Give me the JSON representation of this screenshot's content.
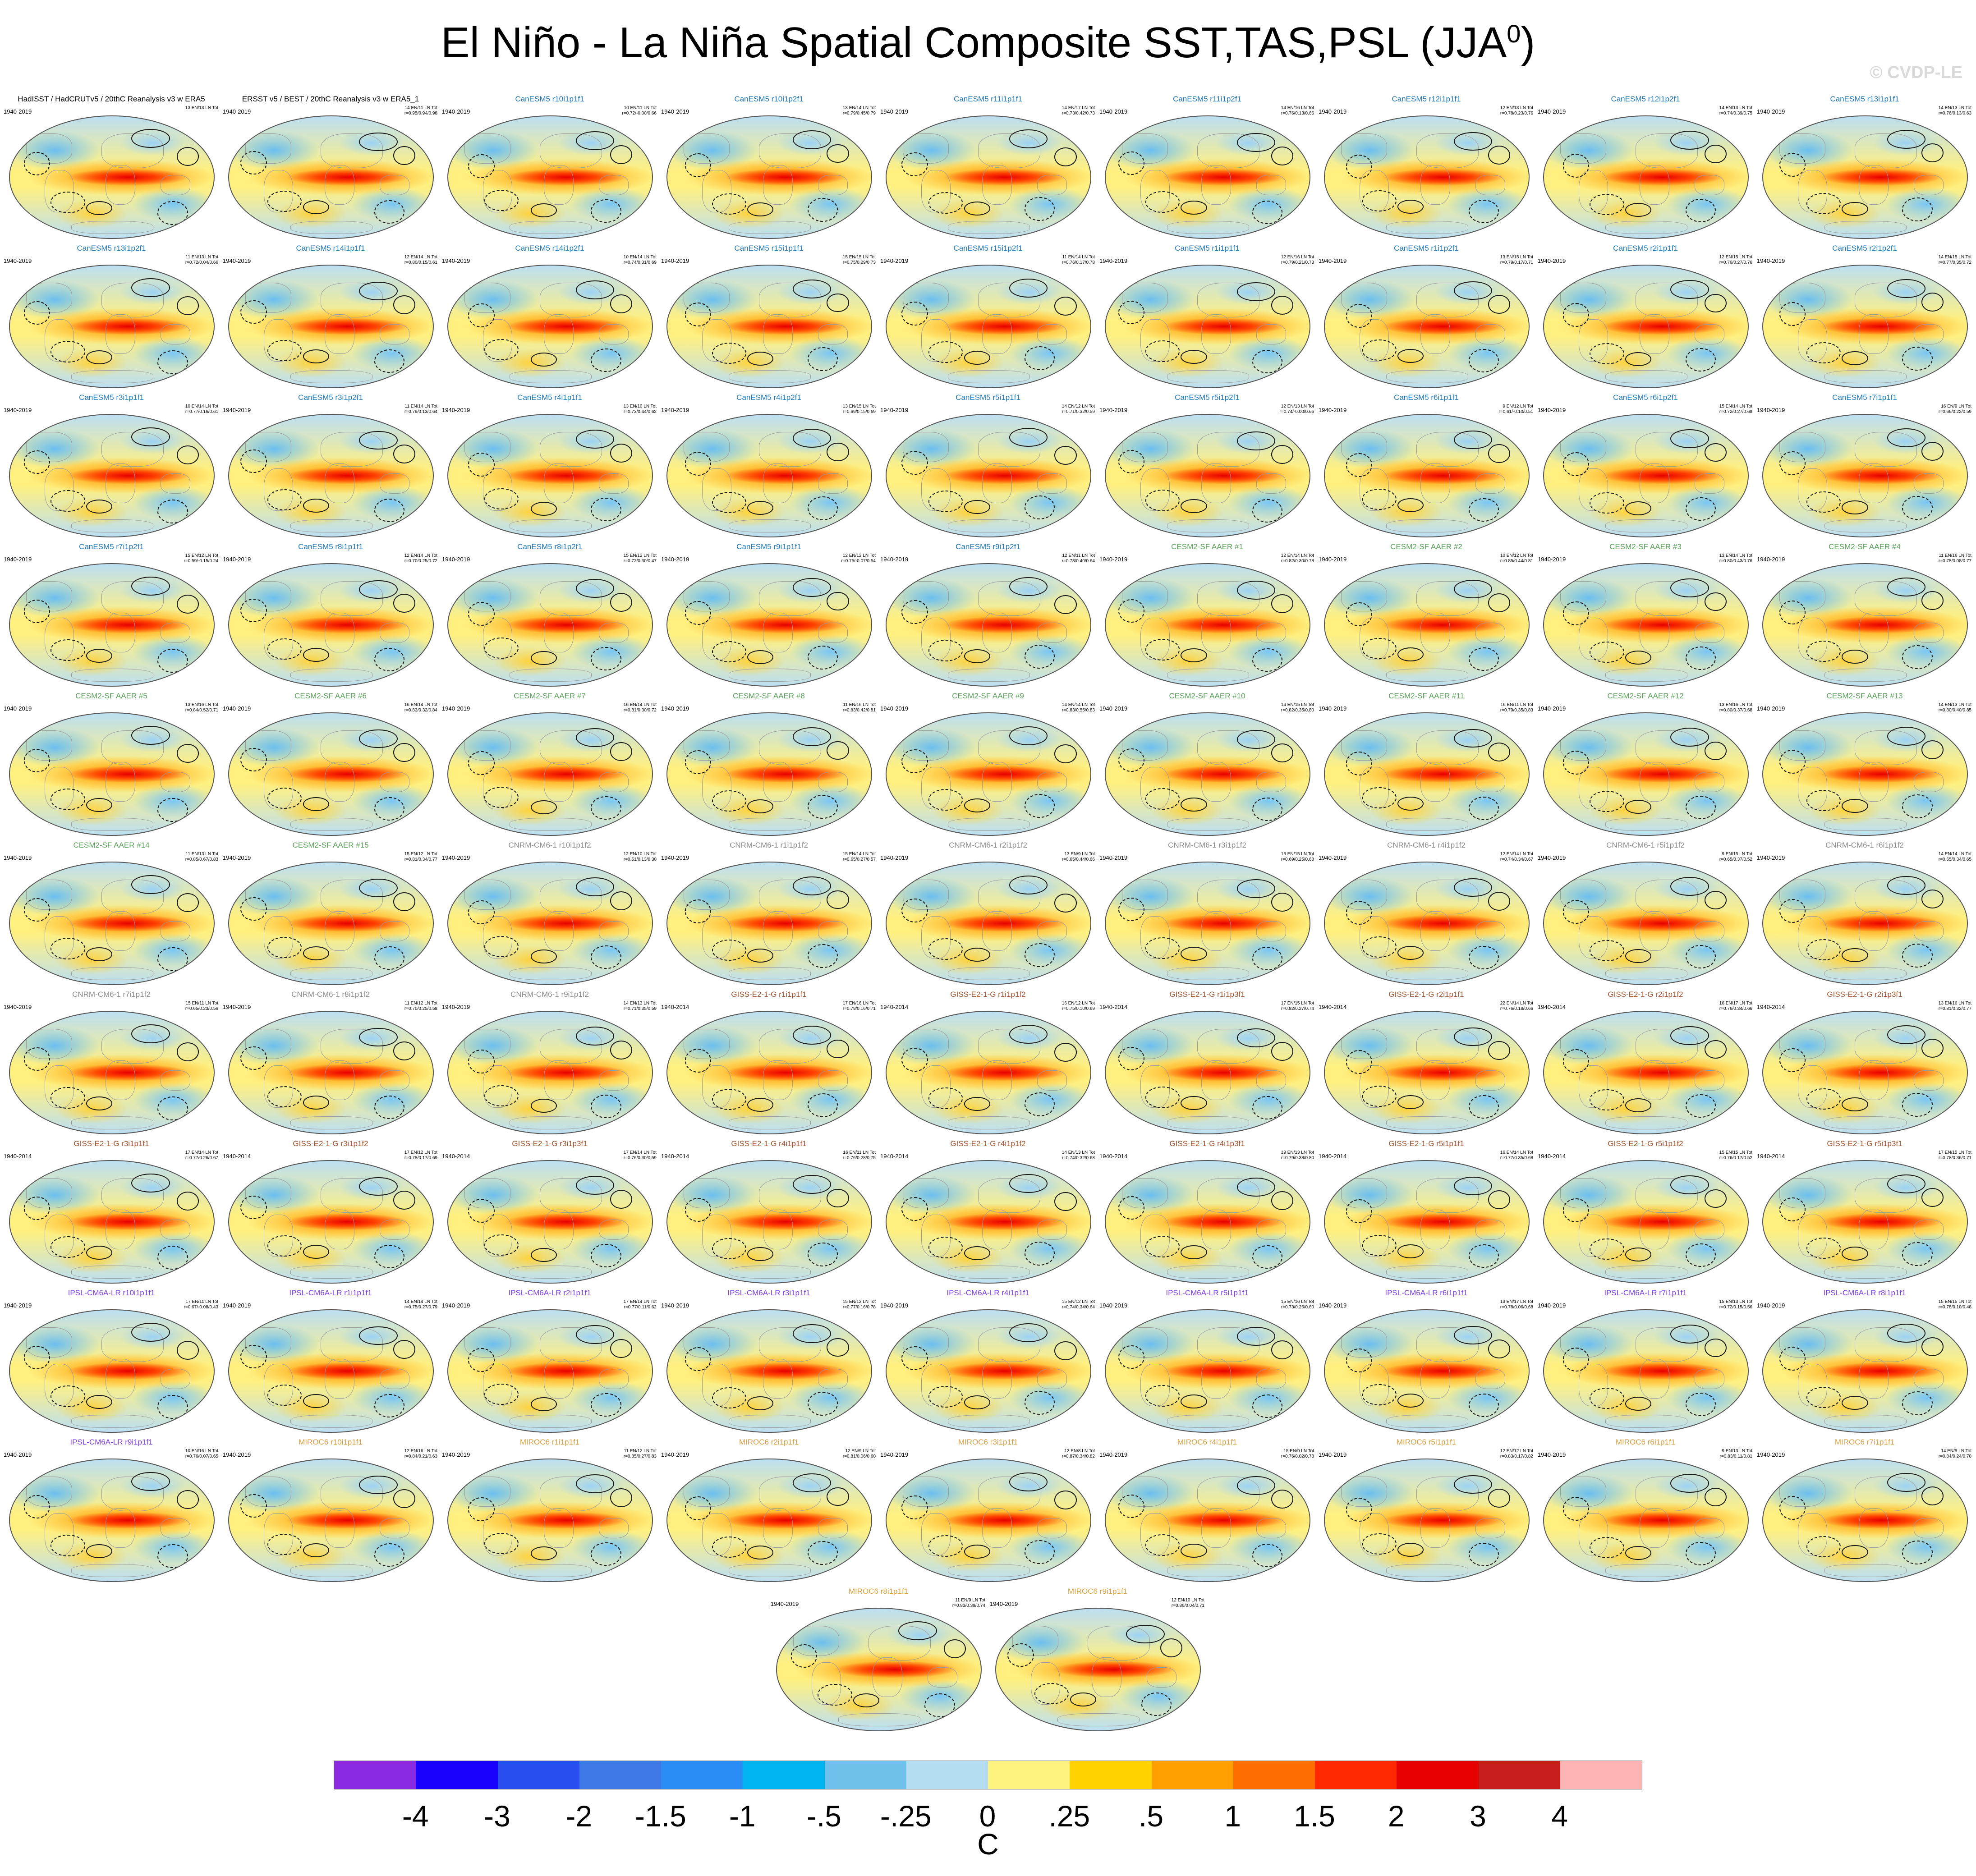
{
  "title": "El Niño - La Niña Spatial Composite SST,TAS,PSL (JJA",
  "title_superscript": "0",
  "title_suffix": ")",
  "watermark": "© CVDP-LE",
  "colorbar": {
    "colors": [
      "#8a2be2",
      "#1a00ff",
      "#2a4df0",
      "#3d78e6",
      "#2a8cf5",
      "#00b4f0",
      "#6fc1ec",
      "#b4dcf1",
      "#fff380",
      "#ffd200",
      "#ffa000",
      "#ff6e00",
      "#ff2800",
      "#e60000",
      "#c81e1e",
      "#ffb4b4"
    ],
    "labels": [
      "-4",
      "-3",
      "-2",
      "-1.5",
      "-1",
      "-.5",
      "-.25",
      "0",
      ".25",
      ".5",
      "1",
      "1.5",
      "2",
      "3",
      "4"
    ],
    "units": "C"
  },
  "model_colors": {
    "obs": "#000000",
    "CanESM5": "#1f77b4",
    "CESM2-SF AAER": "#5aa05a",
    "CNRM-CM6-1": "#8c8c8c",
    "GISS-E2-1-G": "#a0522d",
    "IPSL-CM6A-LR": "#7b3fe4",
    "MIROC6": "#d9a040"
  },
  "panels": [
    {
      "title": "HadISST / HadCRUTv5 / 20thC Reanalysis v3 w ERA5",
      "model": "obs",
      "years": "1940-2019",
      "stats": "13 EN/13 LN Tot"
    },
    {
      "title": "ERSST v5 / BEST / 20thC Reanalysis v3 w ERA5_1",
      "model": "obs",
      "years": "1940-2019",
      "stats": "14 EN/11 LN Tot\nr=0.95/0.94/0.98"
    },
    {
      "title": "CanESM5 r10i1p1f1",
      "model": "CanESM5",
      "years": "1940-2019",
      "stats": "10 EN/11 LN Tot\nr=0.72/-0.00/0.66"
    },
    {
      "title": "CanESM5 r10i1p2f1",
      "model": "CanESM5",
      "years": "1940-2019",
      "stats": "13 EN/14 LN Tot\nr=0.79/0.45/0.79"
    },
    {
      "title": "CanESM5 r11i1p1f1",
      "model": "CanESM5",
      "years": "1940-2019",
      "stats": "14 EN/17 LN Tot\nr=0.73/0.42/0.73"
    },
    {
      "title": "CanESM5 r11i1p2f1",
      "model": "CanESM5",
      "years": "1940-2019",
      "stats": "14 EN/16 LN Tot\nr=0.76/0.13/0.66"
    },
    {
      "title": "CanESM5 r12i1p1f1",
      "model": "CanESM5",
      "years": "1940-2019",
      "stats": "12 EN/13 LN Tot\nr=0.78/0.23/0.76"
    },
    {
      "title": "CanESM5 r12i1p2f1",
      "model": "CanESM5",
      "years": "1940-2019",
      "stats": "14 EN/13 LN Tot\nr=0.74/0.39/0.75"
    },
    {
      "title": "CanESM5 r13i1p1f1",
      "model": "CanESM5",
      "years": "1940-2019",
      "stats": "14 EN/13 LN Tot\nr=0.76/0.13/0.63"
    },
    {
      "title": "CanESM5 r13i1p2f1",
      "model": "CanESM5",
      "years": "1940-2019",
      "stats": "11 EN/13 LN Tot\nr=0.72/0.04/0.66"
    },
    {
      "title": "CanESM5 r14i1p1f1",
      "model": "CanESM5",
      "years": "1940-2019",
      "stats": "12 EN/14 LN Tot\nr=0.80/0.15/0.61"
    },
    {
      "title": "CanESM5 r14i1p2f1",
      "model": "CanESM5",
      "years": "1940-2019",
      "stats": "10 EN/14 LN Tot\nr=0.74/0.31/0.69"
    },
    {
      "title": "CanESM5 r15i1p1f1",
      "model": "CanESM5",
      "years": "1940-2019",
      "stats": "15 EN/15 LN Tot\nr=0.75/0.29/0.73"
    },
    {
      "title": "CanESM5 r15i1p2f1",
      "model": "CanESM5",
      "years": "1940-2019",
      "stats": "11 EN/14 LN Tot\nr=0.76/0.17/0.78"
    },
    {
      "title": "CanESM5 r1i1p1f1",
      "model": "CanESM5",
      "years": "1940-2019",
      "stats": "12 EN/16 LN Tot\nr=0.79/0.21/0.73"
    },
    {
      "title": "CanESM5 r1i1p2f1",
      "model": "CanESM5",
      "years": "1940-2019",
      "stats": "13 EN/15 LN Tot\nr=0.79/0.17/0.71"
    },
    {
      "title": "CanESM5 r2i1p1f1",
      "model": "CanESM5",
      "years": "1940-2019",
      "stats": "12 EN/15 LN Tot\nr=0.76/0.27/0.76"
    },
    {
      "title": "CanESM5 r2i1p2f1",
      "model": "CanESM5",
      "years": "1940-2019",
      "stats": "14 EN/15 LN Tot\nr=0.77/0.35/0.72"
    },
    {
      "title": "CanESM5 r3i1p1f1",
      "model": "CanESM5",
      "years": "1940-2019",
      "stats": "10 EN/14 LN Tot\nr=0.77/0.16/0.61"
    },
    {
      "title": "CanESM5 r3i1p2f1",
      "model": "CanESM5",
      "years": "1940-2019",
      "stats": "11 EN/14 LN Tot\nr=0.79/0.13/0.64"
    },
    {
      "title": "CanESM5 r4i1p1f1",
      "model": "CanESM5",
      "years": "1940-2019",
      "stats": "13 EN/10 LN Tot\nr=0.73/0.44/0.62"
    },
    {
      "title": "CanESM5 r4i1p2f1",
      "model": "CanESM5",
      "years": "1940-2019",
      "stats": "13 EN/15 LN Tot\nr=0.69/0.15/0.69"
    },
    {
      "title": "CanESM5 r5i1p1f1",
      "model": "CanESM5",
      "years": "1940-2019",
      "stats": "14 EN/12 LN Tot\nr=0.71/0.32/0.59"
    },
    {
      "title": "CanESM5 r5i1p2f1",
      "model": "CanESM5",
      "years": "1940-2019",
      "stats": "12 EN/13 LN Tot\nr=0.74/-0.00/0.66"
    },
    {
      "title": "CanESM5 r6i1p1f1",
      "model": "CanESM5",
      "years": "1940-2019",
      "stats": "9 EN/12 LN Tot\nr=0.61/-0.10/0.51"
    },
    {
      "title": "CanESM5 r6i1p2f1",
      "model": "CanESM5",
      "years": "1940-2019",
      "stats": "15 EN/14 LN Tot\nr=0.72/0.27/0.68"
    },
    {
      "title": "CanESM5 r7i1p1f1",
      "model": "CanESM5",
      "years": "1940-2019",
      "stats": "16 EN/9 LN Tot\nr=0.66/0.22/0.59"
    },
    {
      "title": "CanESM5 r7i1p2f1",
      "model": "CanESM5",
      "years": "1940-2019",
      "stats": "15 EN/12 LN Tot\nr=0.59/-0.15/0.24"
    },
    {
      "title": "CanESM5 r8i1p1f1",
      "model": "CanESM5",
      "years": "1940-2019",
      "stats": "12 EN/14 LN Tot\nr=0.70/0.25/0.72"
    },
    {
      "title": "CanESM5 r8i1p2f1",
      "model": "CanESM5",
      "years": "1940-2019",
      "stats": "15 EN/12 LN Tot\nr=0.72/0.30/0.47"
    },
    {
      "title": "CanESM5 r9i1p1f1",
      "model": "CanESM5",
      "years": "1940-2019",
      "stats": "12 EN/12 LN Tot\nr=0.75/-0.07/0.54"
    },
    {
      "title": "CanESM5 r9i1p2f1",
      "model": "CanESM5",
      "years": "1940-2019",
      "stats": "12 EN/11 LN Tot\nr=0.73/0.40/0.64"
    },
    {
      "title": "CESM2-SF AAER #1",
      "model": "CESM2-SF AAER",
      "years": "1940-2019",
      "stats": "12 EN/14 LN Tot\nr=0.82/0.30/0.78"
    },
    {
      "title": "CESM2-SF AAER #2",
      "model": "CESM2-SF AAER",
      "years": "1940-2019",
      "stats": "10 EN/12 LN Tot\nr=0.85/0.44/0.81"
    },
    {
      "title": "CESM2-SF AAER #3",
      "model": "CESM2-SF AAER",
      "years": "1940-2019",
      "stats": "13 EN/14 LN Tot\nr=0.80/0.43/0.76"
    },
    {
      "title": "CESM2-SF AAER #4",
      "model": "CESM2-SF AAER",
      "years": "1940-2019",
      "stats": "11 EN/16 LN Tot\nr=0.78/0.08/0.77"
    },
    {
      "title": "CESM2-SF AAER #5",
      "model": "CESM2-SF AAER",
      "years": "1940-2019",
      "stats": "13 EN/16 LN Tot\nr=0.84/0.52/0.71"
    },
    {
      "title": "CESM2-SF AAER #6",
      "model": "CESM2-SF AAER",
      "years": "1940-2019",
      "stats": "16 EN/14 LN Tot\nr=0.83/0.32/0.84"
    },
    {
      "title": "CESM2-SF AAER #7",
      "model": "CESM2-SF AAER",
      "years": "1940-2019",
      "stats": "16 EN/14 LN Tot\nr=0.81/0.30/0.72"
    },
    {
      "title": "CESM2-SF AAER #8",
      "model": "CESM2-SF AAER",
      "years": "1940-2019",
      "stats": "11 EN/16 LN Tot\nr=0.83/0.42/0.81"
    },
    {
      "title": "CESM2-SF AAER #9",
      "model": "CESM2-SF AAER",
      "years": "1940-2019",
      "stats": "14 EN/14 LN Tot\nr=0.83/0.55/0.83"
    },
    {
      "title": "CESM2-SF AAER #10",
      "model": "CESM2-SF AAER",
      "years": "1940-2019",
      "stats": "14 EN/15 LN Tot\nr=0.82/0.35/0.80"
    },
    {
      "title": "CESM2-SF AAER #11",
      "model": "CESM2-SF AAER",
      "years": "1940-2019",
      "stats": "16 EN/11 LN Tot\nr=0.79/0.35/0.83"
    },
    {
      "title": "CESM2-SF AAER #12",
      "model": "CESM2-SF AAER",
      "years": "1940-2019",
      "stats": "13 EN/16 LN Tot\nr=0.80/0.37/0.68"
    },
    {
      "title": "CESM2-SF AAER #13",
      "model": "CESM2-SF AAER",
      "years": "1940-2019",
      "stats": "14 EN/13 LN Tot\nr=0.80/0.40/0.85"
    },
    {
      "title": "CESM2-SF AAER #14",
      "model": "CESM2-SF AAER",
      "years": "1940-2019",
      "stats": "11 EN/13 LN Tot\nr=0.85/0.67/0.83"
    },
    {
      "title": "CESM2-SF AAER #15",
      "model": "CESM2-SF AAER",
      "years": "1940-2019",
      "stats": "15 EN/12 LN Tot\nr=0.81/0.34/0.77"
    },
    {
      "title": "CNRM-CM6-1 r10i1p1f2",
      "model": "CNRM-CM6-1",
      "years": "1940-2019",
      "stats": "12 EN/10 LN Tot\nr=0.51/0.13/0.30"
    },
    {
      "title": "CNRM-CM6-1 r1i1p1f2",
      "model": "CNRM-CM6-1",
      "years": "1940-2019",
      "stats": "15 EN/14 LN Tot\nr=0.65/0.27/0.57"
    },
    {
      "title": "CNRM-CM6-1 r2i1p1f2",
      "model": "CNRM-CM6-1",
      "years": "1940-2019",
      "stats": "13 EN/9 LN Tot\nr=0.65/0.44/0.66"
    },
    {
      "title": "CNRM-CM6-1 r3i1p1f2",
      "model": "CNRM-CM6-1",
      "years": "1940-2019",
      "stats": "15 EN/15 LN Tot\nr=0.69/0.25/0.68"
    },
    {
      "title": "CNRM-CM6-1 r4i1p1f2",
      "model": "CNRM-CM6-1",
      "years": "1940-2019",
      "stats": "12 EN/14 LN Tot\nr=0.74/0.34/0.67"
    },
    {
      "title": "CNRM-CM6-1 r5i1p1f2",
      "model": "CNRM-CM6-1",
      "years": "1940-2019",
      "stats": "9 EN/15 LN Tot\nr=0.65/0.37/0.52"
    },
    {
      "title": "CNRM-CM6-1 r6i1p1f2",
      "model": "CNRM-CM6-1",
      "years": "1940-2019",
      "stats": "14 EN/14 LN Tot\nr=0.65/0.34/0.65"
    },
    {
      "title": "CNRM-CM6-1 r7i1p1f2",
      "model": "CNRM-CM6-1",
      "years": "1940-2019",
      "stats": "15 EN/11 LN Tot\nr=0.65/0.23/0.56"
    },
    {
      "title": "CNRM-CM6-1 r8i1p1f2",
      "model": "CNRM-CM6-1",
      "years": "1940-2019",
      "stats": "11 EN/12 LN Tot\nr=0.70/0.25/0.58"
    },
    {
      "title": "CNRM-CM6-1 r9i1p1f2",
      "model": "CNRM-CM6-1",
      "years": "1940-2019",
      "stats": "14 EN/13 LN Tot\nr=0.71/0.35/0.59"
    },
    {
      "title": "GISS-E2-1-G r1i1p1f1",
      "model": "GISS-E2-1-G",
      "years": "1940-2014",
      "stats": "17 EN/16 LN Tot\nr=0.79/0.16/0.71"
    },
    {
      "title": "GISS-E2-1-G r1i1p1f2",
      "model": "GISS-E2-1-G",
      "years": "1940-2014",
      "stats": "16 EN/12 LN Tot\nr=0.75/0.10/0.69"
    },
    {
      "title": "GISS-E2-1-G r1i1p3f1",
      "model": "GISS-E2-1-G",
      "years": "1940-2014",
      "stats": "17 EN/15 LN Tot\nr=0.82/0.27/0.74"
    },
    {
      "title": "GISS-E2-1-G r2i1p1f1",
      "model": "GISS-E2-1-G",
      "years": "1940-2014",
      "stats": "22 EN/14 LN Tot\nr=0.76/0.18/0.66"
    },
    {
      "title": "GISS-E2-1-G r2i1p1f2",
      "model": "GISS-E2-1-G",
      "years": "1940-2014",
      "stats": "16 EN/17 LN Tot\nr=0.76/0.34/0.66"
    },
    {
      "title": "GISS-E2-1-G r2i1p3f1",
      "model": "GISS-E2-1-G",
      "years": "1940-2014",
      "stats": "13 EN/16 LN Tot\nr=0.81/0.32/0.77"
    },
    {
      "title": "GISS-E2-1-G r3i1p1f1",
      "model": "GISS-E2-1-G",
      "years": "1940-2014",
      "stats": "17 EN/14 LN Tot\nr=0.77/0.26/0.67"
    },
    {
      "title": "GISS-E2-1-G r3i1p1f2",
      "model": "GISS-E2-1-G",
      "years": "1940-2014",
      "stats": "17 EN/12 LN Tot\nr=0.78/0.17/0.69"
    },
    {
      "title": "GISS-E2-1-G r3i1p3f1",
      "model": "GISS-E2-1-G",
      "years": "1940-2014",
      "stats": "17 EN/14 LN Tot\nr=0.76/0.30/0.59"
    },
    {
      "title": "GISS-E2-1-G r4i1p1f1",
      "model": "GISS-E2-1-G",
      "years": "1940-2014",
      "stats": "16 EN/11 LN Tot\nr=0.76/0.28/0.75"
    },
    {
      "title": "GISS-E2-1-G r4i1p1f2",
      "model": "GISS-E2-1-G",
      "years": "1940-2014",
      "stats": "14 EN/13 LN Tot\nr=0.74/0.32/0.68"
    },
    {
      "title": "GISS-E2-1-G r4i1p3f1",
      "model": "GISS-E2-1-G",
      "years": "1940-2014",
      "stats": "19 EN/13 LN Tot\nr=0.79/0.38/0.80"
    },
    {
      "title": "GISS-E2-1-G r5i1p1f1",
      "model": "GISS-E2-1-G",
      "years": "1940-2014",
      "stats": "16 EN/14 LN Tot\nr=0.77/0.35/0.68"
    },
    {
      "title": "GISS-E2-1-G r5i1p1f2",
      "model": "GISS-E2-1-G",
      "years": "1940-2014",
      "stats": "15 EN/15 LN Tot\nr=0.76/0.17/0.52"
    },
    {
      "title": "GISS-E2-1-G r5i1p3f1",
      "model": "GISS-E2-1-G",
      "years": "1940-2014",
      "stats": "17 EN/15 LN Tot\nr=0.78/0.36/0.71"
    },
    {
      "title": "IPSL-CM6A-LR r10i1p1f1",
      "model": "IPSL-CM6A-LR",
      "years": "1940-2019",
      "stats": "17 EN/11 LN Tot\nr=0.67/-0.08/0.43"
    },
    {
      "title": "IPSL-CM6A-LR r1i1p1f1",
      "model": "IPSL-CM6A-LR",
      "years": "1940-2019",
      "stats": "14 EN/14 LN Tot\nr=0.75/0.27/0.79"
    },
    {
      "title": "IPSL-CM6A-LR r2i1p1f1",
      "model": "IPSL-CM6A-LR",
      "years": "1940-2019",
      "stats": "17 EN/14 LN Tot\nr=0.77/0.11/0.62"
    },
    {
      "title": "IPSL-CM6A-LR r3i1p1f1",
      "model": "IPSL-CM6A-LR",
      "years": "1940-2019",
      "stats": "15 EN/12 LN Tot\nr=0.77/0.16/0.78"
    },
    {
      "title": "IPSL-CM6A-LR r4i1p1f1",
      "model": "IPSL-CM6A-LR",
      "years": "1940-2019",
      "stats": "15 EN/12 LN Tot\nr=0.74/0.34/0.64"
    },
    {
      "title": "IPSL-CM6A-LR r5i1p1f1",
      "model": "IPSL-CM6A-LR",
      "years": "1940-2019",
      "stats": "15 EN/16 LN Tot\nr=0.73/0.26/0.60"
    },
    {
      "title": "IPSL-CM6A-LR r6i1p1f1",
      "model": "IPSL-CM6A-LR",
      "years": "1940-2019",
      "stats": "13 EN/17 LN Tot\nr=0.78/0.06/0.68"
    },
    {
      "title": "IPSL-CM6A-LR r7i1p1f1",
      "model": "IPSL-CM6A-LR",
      "years": "1940-2019",
      "stats": "15 EN/13 LN Tot\nr=0.72/0.15/0.56"
    },
    {
      "title": "IPSL-CM6A-LR r8i1p1f1",
      "model": "IPSL-CM6A-LR",
      "years": "1940-2019",
      "stats": "15 EN/15 LN Tot\nr=0.78/0.10/0.48"
    },
    {
      "title": "IPSL-CM6A-LR r9i1p1f1",
      "model": "IPSL-CM6A-LR",
      "years": "1940-2019",
      "stats": "10 EN/16 LN Tot\nr=0.76/0.07/0.65"
    },
    {
      "title": "MIROC6 r10i1p1f1",
      "model": "MIROC6",
      "years": "1940-2019",
      "stats": "12 EN/16 LN Tot\nr=0.84/0.21/0.63"
    },
    {
      "title": "MIROC6 r1i1p1f1",
      "model": "MIROC6",
      "years": "1940-2019",
      "stats": "11 EN/12 LN Tot\nr=0.85/0.27/0.83"
    },
    {
      "title": "MIROC6 r2i1p1f1",
      "model": "MIROC6",
      "years": "1940-2019",
      "stats": "12 EN/9 LN Tot\nr=0.81/0.06/0.60"
    },
    {
      "title": "MIROC6 r3i1p1f1",
      "model": "MIROC6",
      "years": "1940-2019",
      "stats": "12 EN/8 LN Tot\nr=0.87/0.34/0.82"
    },
    {
      "title": "MIROC6 r4i1p1f1",
      "model": "MIROC6",
      "years": "1940-2019",
      "stats": "15 EN/9 LN Tot\nr=0.76/0.02/0.78"
    },
    {
      "title": "MIROC6 r5i1p1f1",
      "model": "MIROC6",
      "years": "1940-2019",
      "stats": "12 EN/12 LN Tot\nr=0.83/0.17/0.82"
    },
    {
      "title": "MIROC6 r6i1p1f1",
      "model": "MIROC6",
      "years": "1940-2019",
      "stats": "9 EN/13 LN Tot\nr=0.83/0.11/0.81"
    },
    {
      "title": "MIROC6 r7i1p1f1",
      "model": "MIROC6",
      "years": "1940-2019",
      "stats": "14 EN/9 LN Tot\nr=0.84/0.24/0.70"
    },
    {
      "title": "MIROC6 r8i1p1f1",
      "model": "MIROC6",
      "years": "1940-2019",
      "stats": "11 EN/9 LN Tot\nr=0.83/0.39/0.74"
    },
    {
      "title": "MIROC6 r9i1p1f1",
      "model": "MIROC6",
      "years": "1940-2019",
      "stats": "12 EN/10 LN Tot\nr=0.86/0.04/0.71"
    }
  ]
}
